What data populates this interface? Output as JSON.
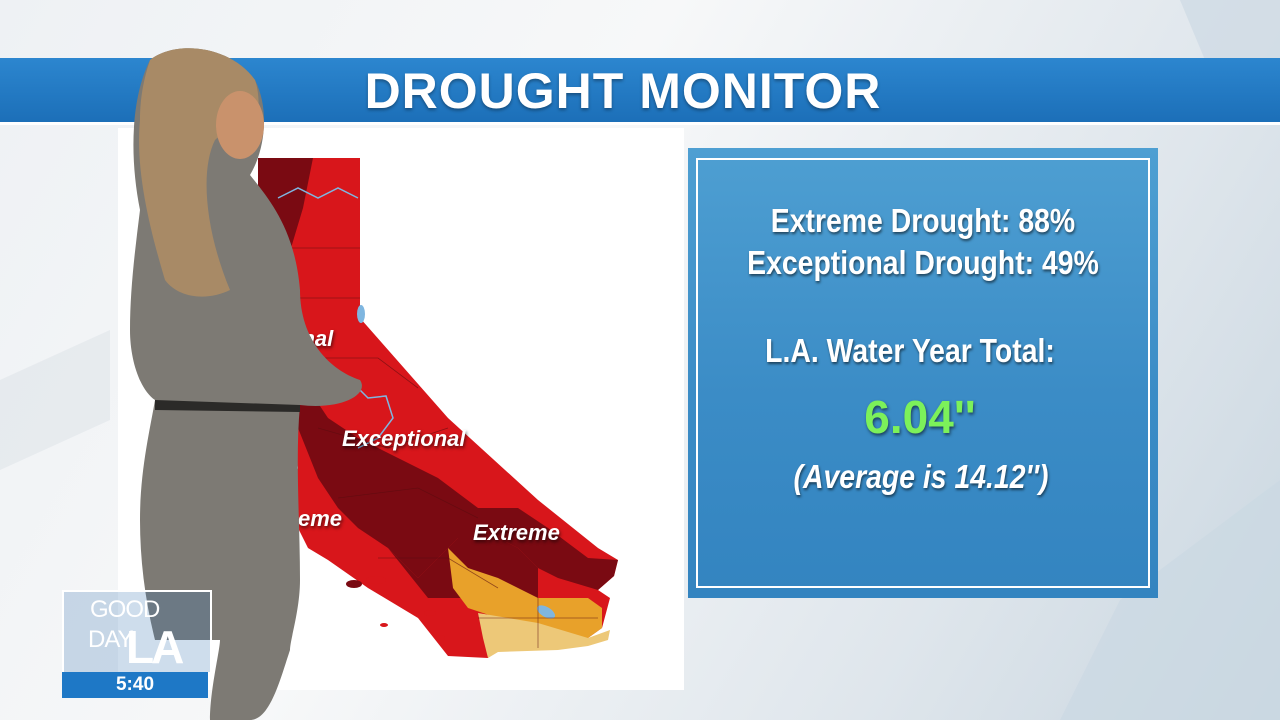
{
  "header": {
    "title": "DROUGHT MONITOR"
  },
  "map": {
    "labels": {
      "exceptional_partial": "onal",
      "exceptional": "Exceptional",
      "extreme_partial": "eme",
      "extreme": "Extreme"
    },
    "colors": {
      "exceptional": "#7a0a12",
      "extreme": "#d8161b",
      "severe": "#e8a12a",
      "moderate": "#edc878",
      "water": "#7fb6e0"
    }
  },
  "info": {
    "extreme_drought": "Extreme Drought: 88%",
    "exceptional_drought": "Exceptional Drought: 49%",
    "water_year_label": "L.A. Water Year Total:",
    "water_year_value": "6.04''",
    "average_note": "(Average is 14.12'')"
  },
  "logo": {
    "good": "GOOD",
    "day": "DAY",
    "la": "LA",
    "time": "5:40"
  }
}
